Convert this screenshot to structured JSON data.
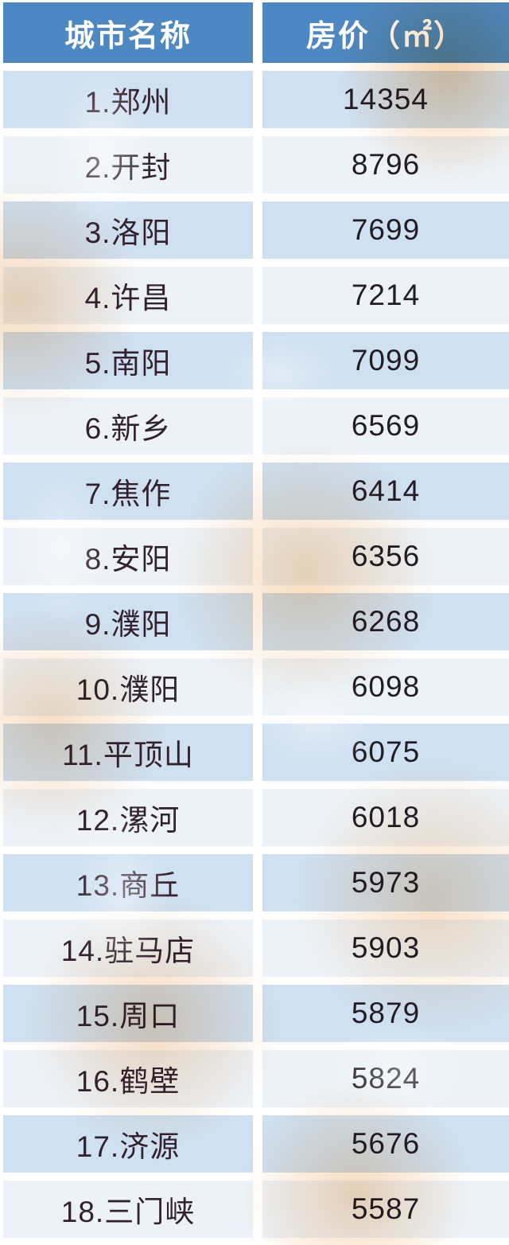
{
  "chart_data": {
    "type": "table",
    "columns": [
      "城市名称",
      "房价（㎡）"
    ],
    "rows": [
      [
        "1.郑州",
        "14354"
      ],
      [
        "2.开封",
        "8796"
      ],
      [
        "3.洛阳",
        "7699"
      ],
      [
        "4.许昌",
        "7214"
      ],
      [
        "5.南阳",
        "7099"
      ],
      [
        "6.新乡",
        "6569"
      ],
      [
        "7.焦作",
        "6414"
      ],
      [
        "8.安阳",
        "6356"
      ],
      [
        "9.濮阳",
        "6268"
      ],
      [
        "10.濮阳",
        "6098"
      ],
      [
        "11.平顶山",
        "6075"
      ],
      [
        "12.漯河",
        "6018"
      ],
      [
        "13.商丘",
        "5973"
      ],
      [
        "14.驻马店",
        "5903"
      ],
      [
        "15.周口",
        "5879"
      ],
      [
        "16.鹤壁",
        "5824"
      ],
      [
        "17.济源",
        "5676"
      ],
      [
        "18.三门峡",
        "5587"
      ]
    ]
  },
  "header": {
    "city_label": "城市名称",
    "price_label": "房价（㎡）"
  },
  "colors": {
    "header_bg": "#4e88c2",
    "row_blue": "#cfe0f1",
    "row_light": "#ecf2f8",
    "gutter": "#ffffff",
    "city_text": "#32222f",
    "price_text": "#221c26",
    "header_text": "#ffffff",
    "watermark_orange": "#f3c798"
  }
}
